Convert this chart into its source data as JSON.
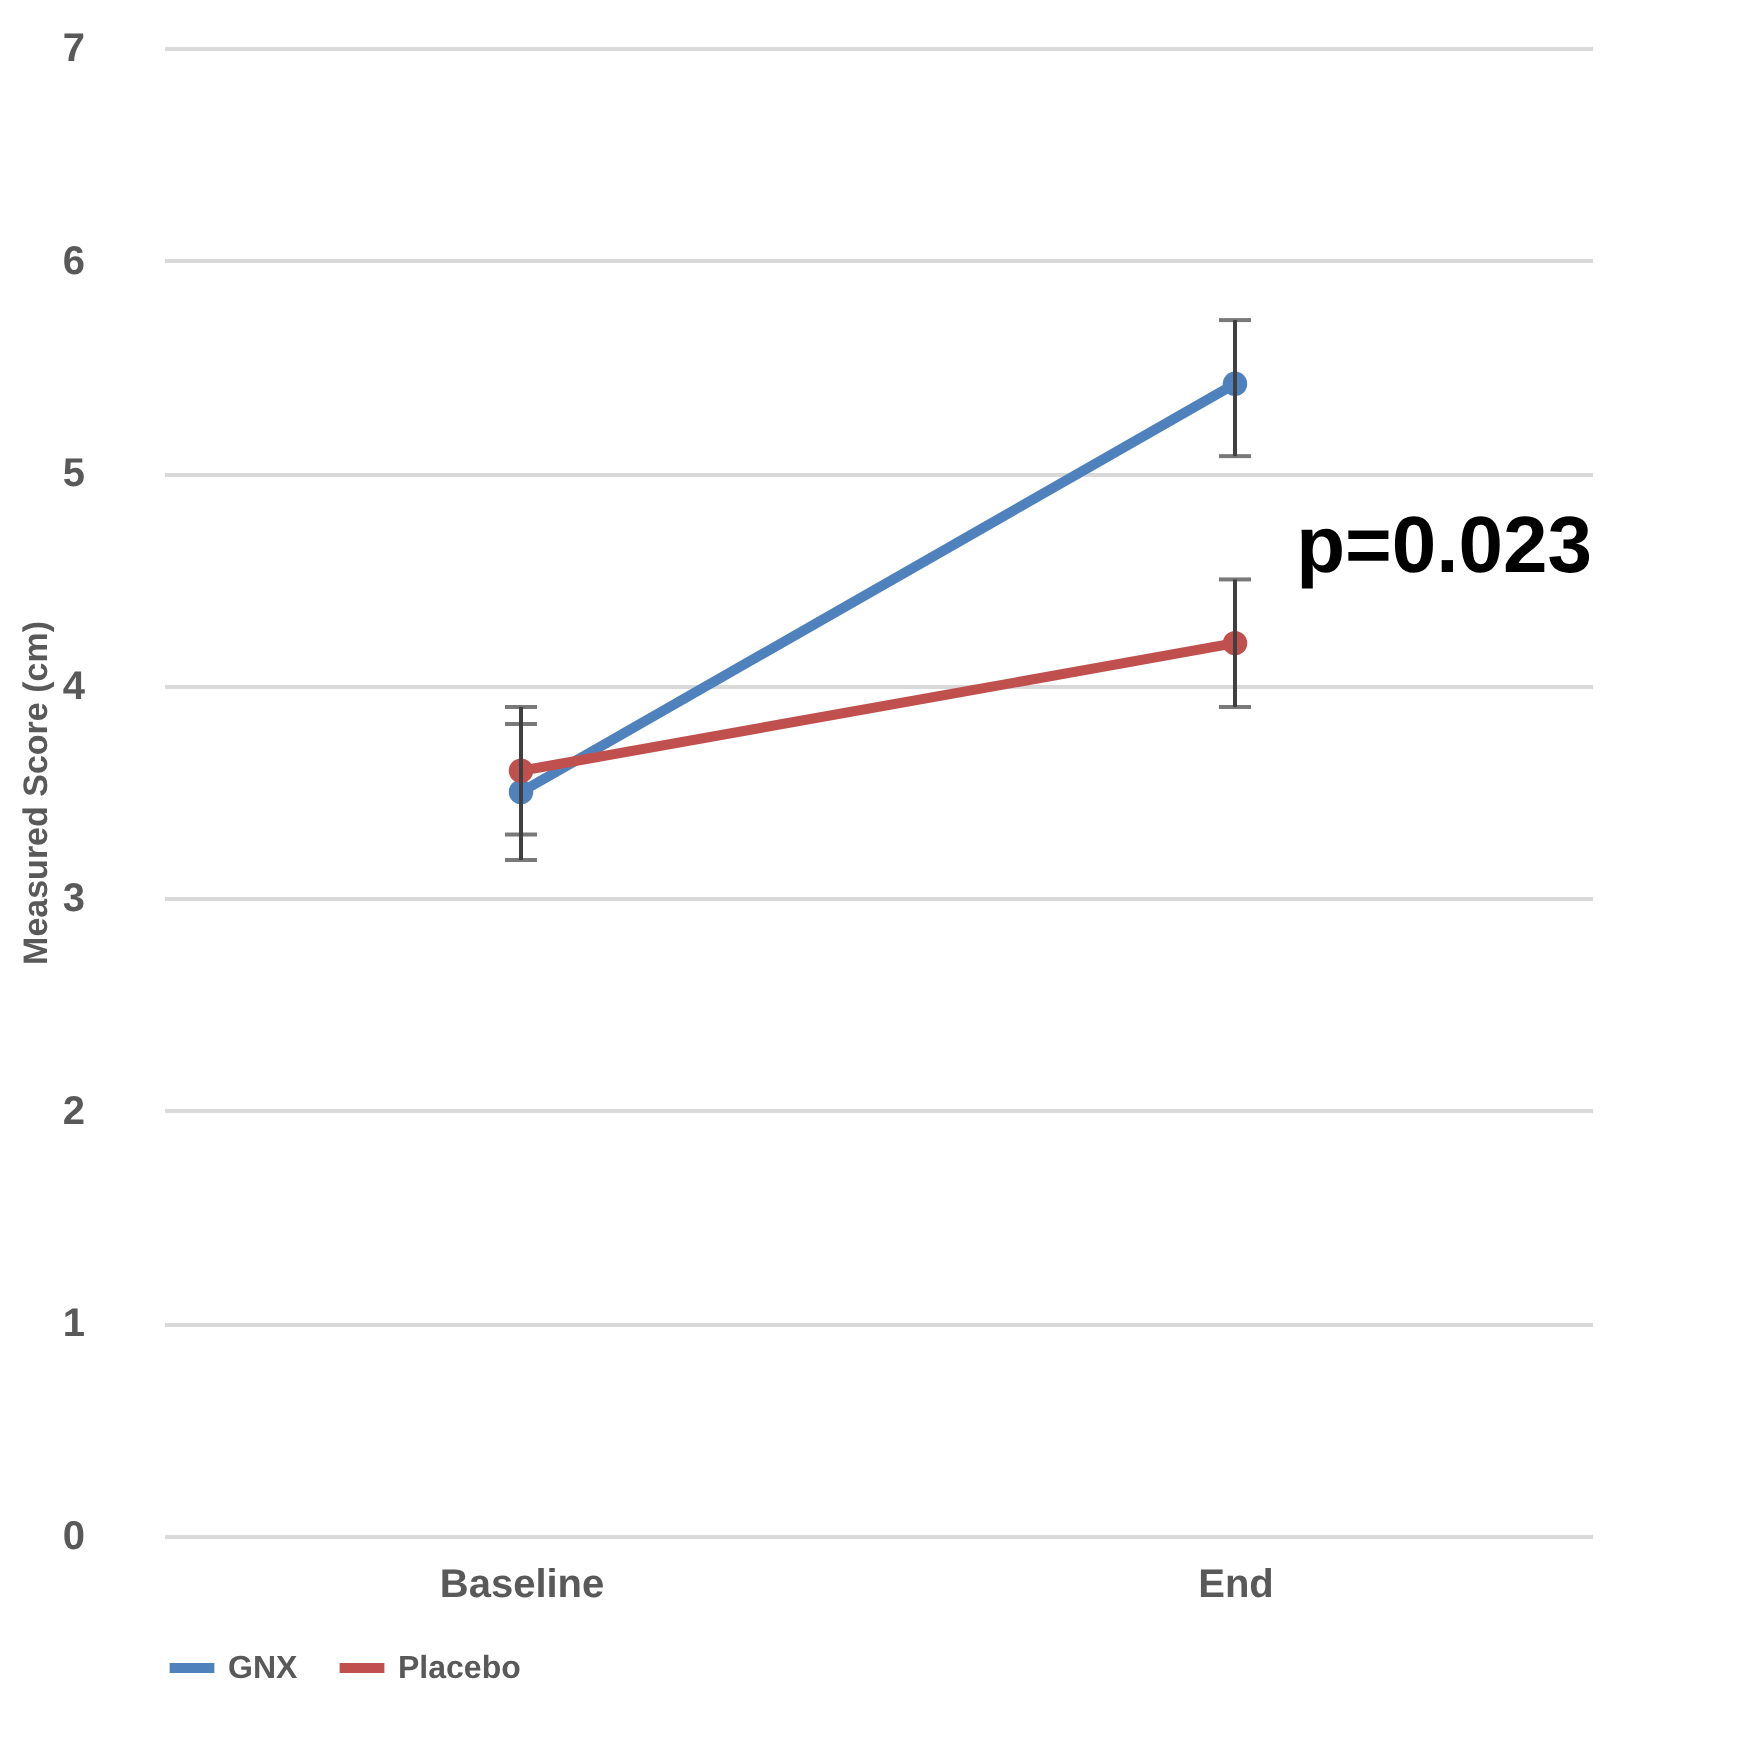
{
  "chart_data": {
    "type": "line",
    "ylabel": "Measured Score (cm)",
    "categories": [
      "Baseline",
      "End"
    ],
    "series": [
      {
        "name": "GNX",
        "color": "#4f81bd",
        "values": [
          3.5,
          5.42
        ],
        "errors": [
          [
            3.18,
            3.82
          ],
          [
            5.08,
            5.72
          ]
        ]
      },
      {
        "name": "Placebo",
        "color": "#c0504d",
        "values": [
          3.6,
          4.2
        ],
        "errors": [
          [
            3.3,
            3.9
          ],
          [
            3.9,
            4.5
          ]
        ]
      }
    ],
    "ylim": [
      0,
      7
    ],
    "yticks": [
      0,
      1,
      2,
      3,
      4,
      5,
      6,
      7
    ],
    "grid": "y",
    "legend": "bottom",
    "marker": "circle",
    "line_style": "solid",
    "annotations": [
      "p=0.023"
    ]
  }
}
